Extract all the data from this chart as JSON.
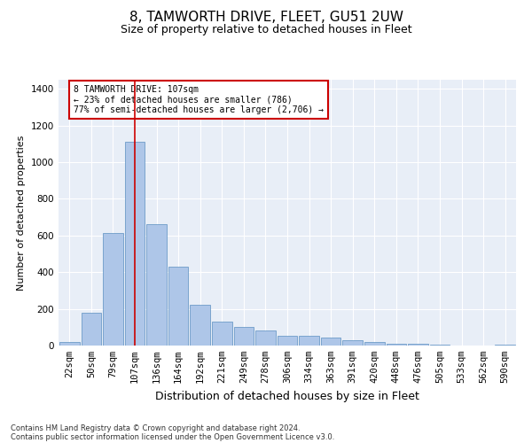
{
  "title": "8, TAMWORTH DRIVE, FLEET, GU51 2UW",
  "subtitle": "Size of property relative to detached houses in Fleet",
  "xlabel": "Distribution of detached houses by size in Fleet",
  "ylabel": "Number of detached properties",
  "footer_line1": "Contains HM Land Registry data © Crown copyright and database right 2024.",
  "footer_line2": "Contains public sector information licensed under the Open Government Licence v3.0.",
  "annotation_line1": "8 TAMWORTH DRIVE: 107sqm",
  "annotation_line2": "← 23% of detached houses are smaller (786)",
  "annotation_line3": "77% of semi-detached houses are larger (2,706) →",
  "bar_labels": [
    "22sqm",
    "50sqm",
    "79sqm",
    "107sqm",
    "136sqm",
    "164sqm",
    "192sqm",
    "221sqm",
    "249sqm",
    "278sqm",
    "306sqm",
    "334sqm",
    "363sqm",
    "391sqm",
    "420sqm",
    "448sqm",
    "476sqm",
    "505sqm",
    "533sqm",
    "562sqm",
    "590sqm"
  ],
  "bar_values": [
    20,
    180,
    615,
    1110,
    660,
    430,
    220,
    130,
    100,
    80,
    55,
    55,
    45,
    30,
    20,
    10,
    10,
    5,
    0,
    0,
    5
  ],
  "bar_color": "#aec6e8",
  "bar_edge_color": "#5a8fc0",
  "background_color": "#e8eef7",
  "vline_x_index": 3,
  "vline_color": "#cc0000",
  "annotation_box_facecolor": "#ffffff",
  "annotation_box_edgecolor": "#cc0000",
  "ylim": [
    0,
    1450
  ],
  "yticks": [
    0,
    200,
    400,
    600,
    800,
    1000,
    1200,
    1400
  ],
  "title_fontsize": 11,
  "subtitle_fontsize": 9,
  "xlabel_fontsize": 9,
  "ylabel_fontsize": 8,
  "tick_fontsize": 7.5,
  "annotation_fontsize": 7,
  "footer_fontsize": 6
}
